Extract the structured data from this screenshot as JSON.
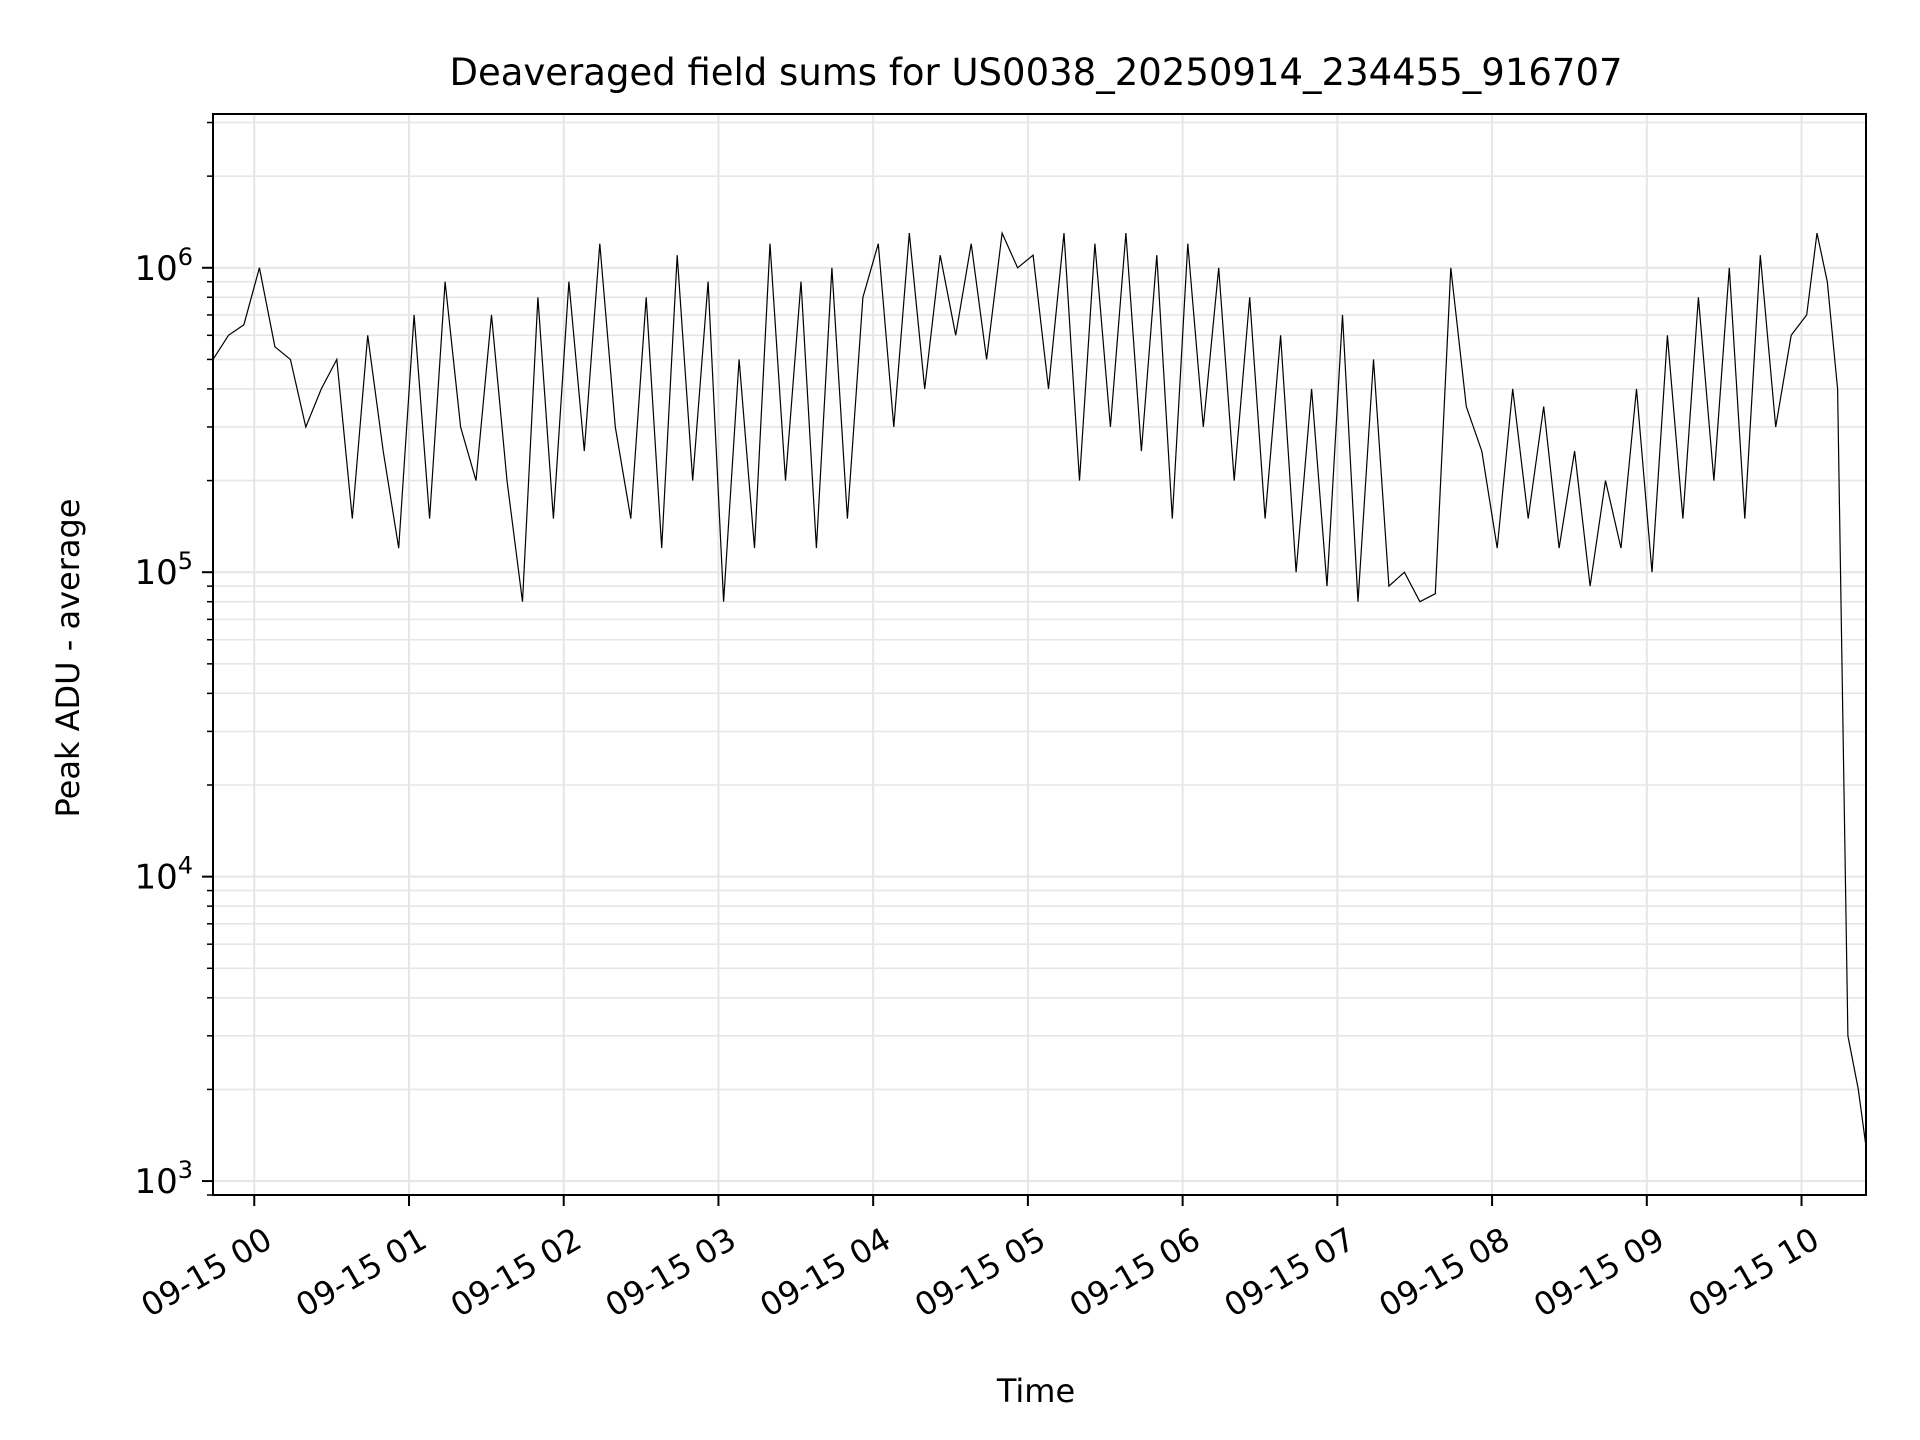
{
  "chart_data": {
    "type": "line",
    "title": "Deaveraged field sums for US0038_20250914_234455_916707",
    "xlabel": "Time",
    "ylabel": "Peak ADU - average",
    "yscale": "log",
    "ylim": [
      900,
      3200000
    ],
    "x_range": [
      "2025-09-14 23:44",
      "2025-09-15 10:25"
    ],
    "grid": true,
    "line_color": "#000000",
    "grid_color": "#e6e6e6",
    "x_ticks": [
      {
        "time": "2025-09-15 00:00",
        "label": "09-15 00"
      },
      {
        "time": "2025-09-15 01:00",
        "label": "09-15 01"
      },
      {
        "time": "2025-09-15 02:00",
        "label": "09-15 02"
      },
      {
        "time": "2025-09-15 03:00",
        "label": "09-15 03"
      },
      {
        "time": "2025-09-15 04:00",
        "label": "09-15 04"
      },
      {
        "time": "2025-09-15 05:00",
        "label": "09-15 05"
      },
      {
        "time": "2025-09-15 06:00",
        "label": "09-15 06"
      },
      {
        "time": "2025-09-15 07:00",
        "label": "09-15 07"
      },
      {
        "time": "2025-09-15 08:00",
        "label": "09-15 08"
      },
      {
        "time": "2025-09-15 09:00",
        "label": "09-15 09"
      },
      {
        "time": "2025-09-15 10:00",
        "label": "09-15 10"
      }
    ],
    "y_ticks": [
      {
        "value": 1000,
        "base": "10",
        "exp": "3"
      },
      {
        "value": 10000,
        "base": "10",
        "exp": "4"
      },
      {
        "value": 100000,
        "base": "10",
        "exp": "5"
      },
      {
        "value": 1000000,
        "base": "10",
        "exp": "6"
      }
    ],
    "series": [
      {
        "x": [
          "2025-09-14 23:44",
          "2025-09-14 23:50",
          "2025-09-14 23:56",
          "2025-09-15 00:02",
          "2025-09-15 00:08",
          "2025-09-15 00:14",
          "2025-09-15 00:20",
          "2025-09-15 00:26",
          "2025-09-15 00:32",
          "2025-09-15 00:38",
          "2025-09-15 00:44",
          "2025-09-15 00:50",
          "2025-09-15 00:56",
          "2025-09-15 01:02",
          "2025-09-15 01:08",
          "2025-09-15 01:14",
          "2025-09-15 01:20",
          "2025-09-15 01:26",
          "2025-09-15 01:32",
          "2025-09-15 01:38",
          "2025-09-15 01:44",
          "2025-09-15 01:50",
          "2025-09-15 01:56",
          "2025-09-15 02:02",
          "2025-09-15 02:08",
          "2025-09-15 02:14",
          "2025-09-15 02:20",
          "2025-09-15 02:26",
          "2025-09-15 02:32",
          "2025-09-15 02:38",
          "2025-09-15 02:44",
          "2025-09-15 02:50",
          "2025-09-15 02:56",
          "2025-09-15 03:02",
          "2025-09-15 03:08",
          "2025-09-15 03:14",
          "2025-09-15 03:20",
          "2025-09-15 03:26",
          "2025-09-15 03:32",
          "2025-09-15 03:38",
          "2025-09-15 03:44",
          "2025-09-15 03:50",
          "2025-09-15 03:56",
          "2025-09-15 04:02",
          "2025-09-15 04:08",
          "2025-09-15 04:14",
          "2025-09-15 04:20",
          "2025-09-15 04:26",
          "2025-09-15 04:32",
          "2025-09-15 04:38",
          "2025-09-15 04:44",
          "2025-09-15 04:50",
          "2025-09-15 04:56",
          "2025-09-15 05:02",
          "2025-09-15 05:08",
          "2025-09-15 05:14",
          "2025-09-15 05:20",
          "2025-09-15 05:26",
          "2025-09-15 05:32",
          "2025-09-15 05:38",
          "2025-09-15 05:44",
          "2025-09-15 05:50",
          "2025-09-15 05:56",
          "2025-09-15 06:02",
          "2025-09-15 06:08",
          "2025-09-15 06:14",
          "2025-09-15 06:20",
          "2025-09-15 06:26",
          "2025-09-15 06:32",
          "2025-09-15 06:38",
          "2025-09-15 06:44",
          "2025-09-15 06:50",
          "2025-09-15 06:56",
          "2025-09-15 07:02",
          "2025-09-15 07:08",
          "2025-09-15 07:14",
          "2025-09-15 07:20",
          "2025-09-15 07:26",
          "2025-09-15 07:32",
          "2025-09-15 07:38",
          "2025-09-15 07:44",
          "2025-09-15 07:50",
          "2025-09-15 07:56",
          "2025-09-15 08:02",
          "2025-09-15 08:08",
          "2025-09-15 08:14",
          "2025-09-15 08:20",
          "2025-09-15 08:26",
          "2025-09-15 08:32",
          "2025-09-15 08:38",
          "2025-09-15 08:44",
          "2025-09-15 08:50",
          "2025-09-15 08:56",
          "2025-09-15 09:02",
          "2025-09-15 09:08",
          "2025-09-15 09:14",
          "2025-09-15 09:20",
          "2025-09-15 09:26",
          "2025-09-15 09:32",
          "2025-09-15 09:38",
          "2025-09-15 09:44",
          "2025-09-15 09:50",
          "2025-09-15 09:56",
          "2025-09-15 10:02",
          "2025-09-15 10:06",
          "2025-09-15 10:10",
          "2025-09-15 10:14",
          "2025-09-15 10:18",
          "2025-09-15 10:22",
          "2025-09-15 10:25"
        ],
        "y": [
          500000,
          600000,
          650000,
          1000000,
          550000,
          500000,
          300000,
          400000,
          500000,
          150000,
          600000,
          250000,
          120000,
          700000,
          150000,
          900000,
          300000,
          200000,
          700000,
          200000,
          80000,
          800000,
          150000,
          900000,
          250000,
          1200000,
          300000,
          150000,
          800000,
          120000,
          1100000,
          200000,
          900000,
          80000,
          500000,
          120000,
          1200000,
          200000,
          900000,
          120000,
          1000000,
          150000,
          800000,
          1200000,
          300000,
          1300000,
          400000,
          1100000,
          600000,
          1200000,
          500000,
          1300000,
          1000000,
          1100000,
          400000,
          1300000,
          200000,
          1200000,
          300000,
          1300000,
          250000,
          1100000,
          150000,
          1200000,
          300000,
          1000000,
          200000,
          800000,
          150000,
          600000,
          100000,
          400000,
          90000,
          700000,
          80000,
          500000,
          90000,
          100000,
          80000,
          85000,
          1000000,
          350000,
          250000,
          120000,
          400000,
          150000,
          350000,
          120000,
          250000,
          90000,
          200000,
          120000,
          400000,
          100000,
          600000,
          150000,
          800000,
          200000,
          1000000,
          150000,
          1100000,
          300000,
          600000,
          700000,
          1300000,
          900000,
          400000,
          3000,
          2000,
          1300
        ]
      }
    ]
  }
}
